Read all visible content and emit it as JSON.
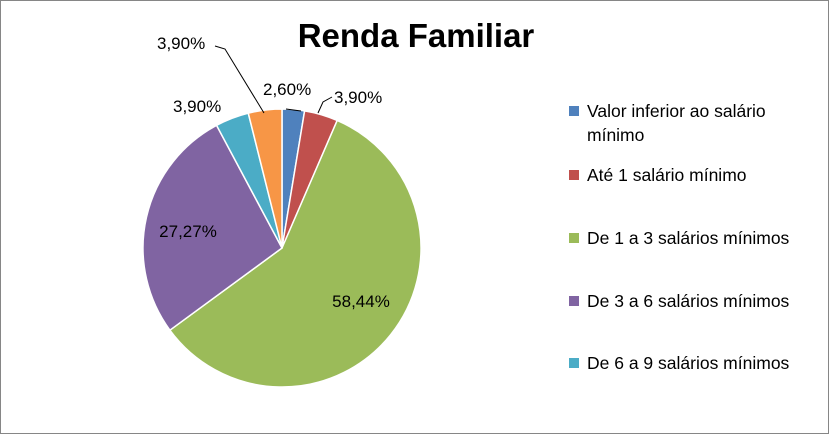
{
  "chart_data": {
    "type": "pie",
    "title": "Renda Familiar",
    "slices": [
      {
        "label": "Valor inferior ao salário mínimo",
        "value": 2.6,
        "display": "2,60%",
        "color": "#4F81BD"
      },
      {
        "label": "Até 1 salário mínimo",
        "value": 3.9,
        "display": "3,90%",
        "color": "#C0504D"
      },
      {
        "label": "De 1 a 3 salários mínimos",
        "value": 58.44,
        "display": "58,44%",
        "color": "#9BBB59"
      },
      {
        "label": "De 3 a 6 salários mínimos",
        "value": 27.27,
        "display": "27,27%",
        "color": "#8064A2"
      },
      {
        "label": "De 6 a 9 salários mínimos",
        "value": 3.9,
        "display": "3,90%",
        "color": "#4BACC6"
      },
      {
        "label": "",
        "value": 3.9,
        "display": "3,90%",
        "color": "#F79646"
      }
    ],
    "legend_position": "right"
  }
}
